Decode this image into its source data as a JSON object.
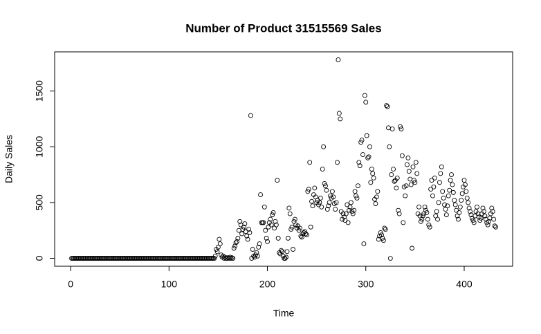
{
  "chart_data": {
    "type": "scatter",
    "title": "Number of Product 31515569 Sales",
    "x_label": "Time",
    "y_label": "Daily Sales",
    "xlim": [
      -16.24,
      449.24
    ],
    "ylim": [
      -71.2,
      1851.2
    ],
    "xticks": [
      0,
      100,
      200,
      300,
      400
    ],
    "yticks": [
      0,
      500,
      1000,
      1500
    ],
    "grid": false,
    "color": "#000000",
    "x": [
      1,
      2,
      3,
      4,
      5,
      6,
      7,
      8,
      9,
      10,
      11,
      12,
      13,
      14,
      15,
      16,
      17,
      18,
      19,
      20,
      21,
      22,
      23,
      24,
      25,
      26,
      27,
      28,
      29,
      30,
      31,
      32,
      33,
      34,
      35,
      36,
      37,
      38,
      39,
      40,
      41,
      42,
      43,
      44,
      45,
      46,
      47,
      48,
      49,
      50,
      51,
      52,
      53,
      54,
      55,
      56,
      57,
      58,
      59,
      60,
      61,
      62,
      63,
      64,
      65,
      66,
      67,
      68,
      69,
      70,
      71,
      72,
      73,
      74,
      75,
      76,
      77,
      78,
      79,
      80,
      81,
      82,
      83,
      84,
      85,
      86,
      87,
      88,
      89,
      90,
      91,
      92,
      93,
      94,
      95,
      96,
      97,
      98,
      99,
      100,
      101,
      102,
      103,
      104,
      105,
      106,
      107,
      108,
      109,
      110,
      111,
      112,
      113,
      114,
      115,
      116,
      117,
      118,
      119,
      120,
      121,
      122,
      123,
      124,
      125,
      126,
      127,
      128,
      129,
      130,
      131,
      132,
      133,
      134,
      135,
      136,
      137,
      138,
      139,
      140,
      141,
      142,
      143,
      144,
      145,
      146,
      147,
      148,
      149,
      150,
      151,
      152,
      153,
      154,
      155,
      156,
      157,
      158,
      159,
      160,
      161,
      162,
      163,
      164,
      165,
      166,
      167,
      168,
      169,
      170,
      171,
      172,
      173,
      174,
      175,
      176,
      177,
      178,
      179,
      180,
      181,
      182,
      183,
      184,
      185,
      186,
      187,
      188,
      189,
      190,
      191,
      192,
      193,
      194,
      195,
      196,
      197,
      198,
      199,
      200,
      201,
      202,
      203,
      204,
      205,
      206,
      207,
      208,
      209,
      210,
      211,
      212,
      213,
      214,
      215,
      216,
      217,
      218,
      219,
      220,
      221,
      222,
      223,
      224,
      225,
      226,
      227,
      228,
      229,
      230,
      231,
      232,
      233,
      234,
      235,
      236,
      237,
      238,
      239,
      240,
      241,
      242,
      243,
      244,
      245,
      246,
      247,
      248,
      249,
      250,
      251,
      252,
      253,
      254,
      255,
      256,
      257,
      258,
      259,
      260,
      261,
      262,
      263,
      264,
      265,
      266,
      267,
      268,
      269,
      270,
      271,
      272,
      273,
      274,
      275,
      276,
      277,
      278,
      279,
      280,
      281,
      282,
      283,
      284,
      285,
      286,
      287,
      288,
      289,
      290,
      291,
      292,
      293,
      294,
      295,
      296,
      297,
      298,
      299,
      300,
      301,
      302,
      303,
      304,
      305,
      306,
      307,
      308,
      309,
      310,
      311,
      312,
      313,
      314,
      315,
      316,
      317,
      318,
      319,
      320,
      321,
      322,
      323,
      324,
      325,
      326,
      327,
      328,
      329,
      330,
      331,
      332,
      333,
      334,
      335,
      336,
      337,
      338,
      339,
      340,
      341,
      342,
      343,
      344,
      345,
      346,
      347,
      348,
      349,
      350,
      351,
      352,
      353,
      354,
      355,
      356,
      357,
      358,
      359,
      360,
      361,
      362,
      363,
      364,
      365,
      366,
      367,
      368,
      369,
      370,
      371,
      372,
      373,
      374,
      375,
      376,
      377,
      378,
      379,
      380,
      381,
      382,
      383,
      384,
      385,
      386,
      387,
      388,
      389,
      390,
      391,
      392,
      393,
      394,
      395,
      396,
      397,
      398,
      399,
      400,
      401,
      402,
      403,
      404,
      405,
      406,
      407,
      408,
      409,
      410,
      411,
      412,
      413,
      414,
      415,
      416,
      417,
      418,
      419,
      420,
      421,
      422,
      423,
      424,
      425,
      426,
      427,
      428,
      429,
      430,
      431,
      432
    ],
    "values": [
      0,
      0,
      0,
      0,
      0,
      0,
      0,
      0,
      0,
      0,
      0,
      0,
      0,
      0,
      0,
      0,
      0,
      0,
      0,
      0,
      0,
      0,
      0,
      0,
      0,
      0,
      0,
      0,
      0,
      0,
      0,
      0,
      0,
      0,
      0,
      0,
      0,
      0,
      0,
      0,
      0,
      0,
      0,
      0,
      0,
      0,
      0,
      0,
      0,
      0,
      0,
      0,
      0,
      0,
      0,
      0,
      0,
      0,
      0,
      0,
      0,
      0,
      0,
      0,
      0,
      0,
      0,
      0,
      0,
      0,
      0,
      0,
      0,
      0,
      0,
      0,
      0,
      0,
      0,
      0,
      0,
      0,
      0,
      0,
      0,
      0,
      0,
      0,
      0,
      0,
      0,
      0,
      0,
      0,
      0,
      0,
      0,
      0,
      0,
      0,
      0,
      0,
      0,
      0,
      0,
      0,
      0,
      0,
      0,
      0,
      0,
      0,
      0,
      0,
      0,
      0,
      0,
      0,
      0,
      0,
      0,
      0,
      0,
      0,
      0,
      0,
      0,
      0,
      0,
      0,
      0,
      0,
      0,
      0,
      0,
      0,
      0,
      0,
      0,
      0,
      0,
      0,
      0,
      0,
      0,
      0,
      20,
      80,
      60,
      100,
      170,
      130,
      30,
      10,
      20,
      0,
      10,
      0,
      0,
      5,
      0,
      10,
      0,
      5,
      0,
      90,
      110,
      140,
      150,
      180,
      250,
      330,
      300,
      220,
      260,
      280,
      310,
      240,
      200,
      170,
      260,
      230,
      1280,
      0,
      80,
      20,
      10,
      30,
      50,
      20,
      100,
      130,
      570,
      320,
      320,
      320,
      460,
      250,
      180,
      150,
      280,
      320,
      350,
      300,
      390,
      410,
      270,
      330,
      300,
      700,
      180,
      50,
      40,
      70,
      60,
      20,
      0,
      0,
      10,
      60,
      180,
      450,
      400,
      260,
      280,
      80,
      330,
      350,
      300,
      270,
      290,
      250,
      270,
      200,
      190,
      220,
      230,
      240,
      220,
      210,
      600,
      620,
      860,
      280,
      510,
      470,
      570,
      630,
      550,
      500,
      520,
      480,
      500,
      540,
      460,
      800,
      1000,
      670,
      650,
      610,
      440,
      470,
      500,
      560,
      540,
      600,
      550,
      490,
      440,
      500,
      860,
      1780,
      1300,
      1250,
      420,
      350,
      400,
      370,
      340,
      400,
      480,
      320,
      430,
      460,
      500,
      420,
      400,
      430,
      600,
      560,
      540,
      650,
      860,
      830,
      1040,
      1060,
      930,
      130,
      1460,
      1400,
      1100,
      900,
      910,
      1000,
      680,
      800,
      760,
      720,
      530,
      490,
      550,
      600,
      170,
      200,
      230,
      210,
      180,
      160,
      270,
      260,
      1370,
      1360,
      1170,
      1000,
      0,
      750,
      1160,
      800,
      690,
      700,
      630,
      720,
      430,
      400,
      1180,
      1160,
      920,
      320,
      640,
      560,
      650,
      840,
      900,
      780,
      710,
      660,
      90,
      820,
      700,
      680,
      860,
      760,
      400,
      460,
      380,
      330,
      350,
      380,
      400,
      460,
      430,
      410,
      350,
      300,
      280,
      620,
      700,
      560,
      640,
      720,
      380,
      420,
      350,
      500,
      680,
      760,
      820,
      600,
      540,
      480,
      440,
      390,
      470,
      560,
      610,
      700,
      750,
      660,
      590,
      520,
      480,
      430,
      380,
      350,
      410,
      460,
      520,
      580,
      640,
      700,
      660,
      600,
      540,
      500,
      450,
      420,
      390,
      360,
      340,
      320,
      380,
      420,
      460,
      400,
      370,
      340,
      360,
      400,
      450,
      420,
      380,
      350,
      320,
      300,
      330,
      360,
      400,
      450,
      420,
      350,
      290,
      280
    ]
  }
}
